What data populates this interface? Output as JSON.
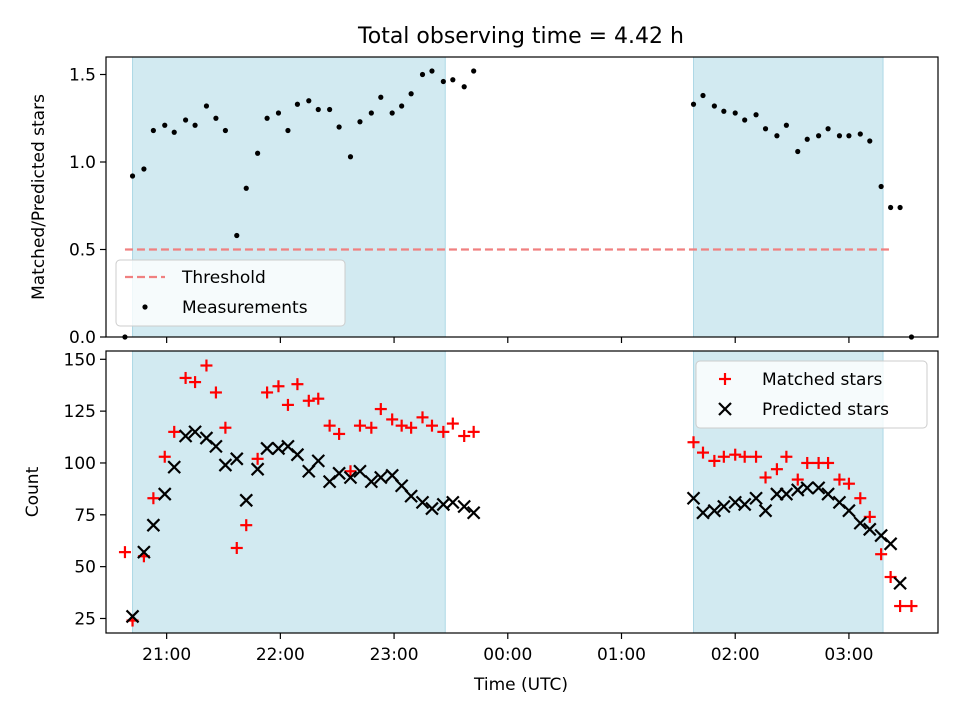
{
  "title": "Total observing time = 4.42 h",
  "colors": {
    "shade": "#add8e6",
    "threshold": "#f08080",
    "matched": "#ff0000",
    "measurements": "#000000",
    "predicted": "#000000"
  },
  "chart_data": [
    {
      "type": "scatter",
      "panel": "top",
      "ylabel": "Matched/Predicted stars",
      "xlim": [
        "20:28",
        "03:47"
      ],
      "ylim": [
        0,
        1.6
      ],
      "yticks": [
        0.0,
        0.5,
        1.0,
        1.5
      ],
      "ytick_labels": [
        "0.0",
        "0.5",
        "1.0",
        "1.5"
      ],
      "shaded_intervals": [
        [
          "20:42",
          "23:27"
        ],
        [
          "01:38",
          "03:18"
        ]
      ],
      "threshold": {
        "name": "Threshold",
        "value": 0.5,
        "x_range": [
          "20:38",
          "03:22"
        ]
      },
      "legend": {
        "position": "lower-left",
        "entries": [
          "Threshold",
          "Measurements"
        ]
      },
      "series": [
        {
          "name": "Measurements",
          "marker": "dot",
          "points": [
            [
              "20:38",
              0.0
            ],
            [
              "20:42",
              0.92
            ],
            [
              "20:48",
              0.96
            ],
            [
              "20:53",
              1.18
            ],
            [
              "20:59",
              1.21
            ],
            [
              "21:04",
              1.17
            ],
            [
              "21:10",
              1.24
            ],
            [
              "21:15",
              1.21
            ],
            [
              "21:21",
              1.32
            ],
            [
              "21:26",
              1.25
            ],
            [
              "21:31",
              1.18
            ],
            [
              "21:37",
              0.58
            ],
            [
              "21:42",
              0.85
            ],
            [
              "21:48",
              1.05
            ],
            [
              "21:53",
              1.25
            ],
            [
              "21:59",
              1.28
            ],
            [
              "22:04",
              1.18
            ],
            [
              "22:09",
              1.33
            ],
            [
              "22:15",
              1.35
            ],
            [
              "22:20",
              1.3
            ],
            [
              "22:26",
              1.3
            ],
            [
              "22:31",
              1.2
            ],
            [
              "22:37",
              1.03
            ],
            [
              "22:42",
              1.23
            ],
            [
              "22:48",
              1.28
            ],
            [
              "22:53",
              1.37
            ],
            [
              "22:59",
              1.28
            ],
            [
              "23:04",
              1.32
            ],
            [
              "23:09",
              1.39
            ],
            [
              "23:15",
              1.5
            ],
            [
              "23:20",
              1.52
            ],
            [
              "23:26",
              1.46
            ],
            [
              "23:31",
              1.47
            ],
            [
              "23:37",
              1.43
            ],
            [
              "23:42",
              1.52
            ],
            [
              "01:38",
              1.33
            ],
            [
              "01:43",
              1.38
            ],
            [
              "01:49",
              1.32
            ],
            [
              "01:54",
              1.29
            ],
            [
              "02:00",
              1.28
            ],
            [
              "02:05",
              1.24
            ],
            [
              "02:11",
              1.27
            ],
            [
              "02:16",
              1.19
            ],
            [
              "02:22",
              1.15
            ],
            [
              "02:27",
              1.21
            ],
            [
              "02:33",
              1.06
            ],
            [
              "02:38",
              1.13
            ],
            [
              "02:44",
              1.15
            ],
            [
              "02:49",
              1.19
            ],
            [
              "02:55",
              1.15
            ],
            [
              "03:00",
              1.15
            ],
            [
              "03:06",
              1.16
            ],
            [
              "03:11",
              1.12
            ],
            [
              "03:17",
              0.86
            ],
            [
              "03:22",
              0.74
            ],
            [
              "03:27",
              0.74
            ],
            [
              "03:33",
              0.0
            ]
          ]
        }
      ]
    },
    {
      "type": "scatter",
      "panel": "bottom",
      "xlabel": "Time (UTC)",
      "ylabel": "Count",
      "xlim": [
        "20:28",
        "03:47"
      ],
      "ylim": [
        18,
        154
      ],
      "yticks": [
        25,
        50,
        75,
        100,
        125,
        150
      ],
      "xtick_labels": [
        "21:00",
        "22:00",
        "23:00",
        "00:00",
        "01:00",
        "02:00",
        "03:00"
      ],
      "shaded_intervals": [
        [
          "20:42",
          "23:27"
        ],
        [
          "01:38",
          "03:18"
        ]
      ],
      "legend": {
        "position": "top-right",
        "entries": [
          "Matched stars",
          "Predicted stars"
        ]
      },
      "series": [
        {
          "name": "Matched stars",
          "marker": "plus",
          "points": [
            [
              "20:38",
              57
            ],
            [
              "20:42",
              24
            ],
            [
              "20:48",
              55
            ],
            [
              "20:53",
              83
            ],
            [
              "20:59",
              103
            ],
            [
              "21:04",
              115
            ],
            [
              "21:10",
              141
            ],
            [
              "21:15",
              139
            ],
            [
              "21:21",
              147
            ],
            [
              "21:26",
              134
            ],
            [
              "21:31",
              117
            ],
            [
              "21:37",
              59
            ],
            [
              "21:42",
              70
            ],
            [
              "21:48",
              102
            ],
            [
              "21:53",
              134
            ],
            [
              "21:59",
              137
            ],
            [
              "22:04",
              128
            ],
            [
              "22:09",
              138
            ],
            [
              "22:15",
              130
            ],
            [
              "22:20",
              131
            ],
            [
              "22:26",
              118
            ],
            [
              "22:31",
              114
            ],
            [
              "22:37",
              96
            ],
            [
              "22:42",
              118
            ],
            [
              "22:48",
              117
            ],
            [
              "22:53",
              126
            ],
            [
              "22:59",
              121
            ],
            [
              "23:04",
              118
            ],
            [
              "23:09",
              117
            ],
            [
              "23:15",
              122
            ],
            [
              "23:20",
              118
            ],
            [
              "23:26",
              115
            ],
            [
              "23:31",
              119
            ],
            [
              "23:37",
              113
            ],
            [
              "23:42",
              115
            ],
            [
              "01:38",
              110
            ],
            [
              "01:43",
              105
            ],
            [
              "01:49",
              101
            ],
            [
              "01:54",
              103
            ],
            [
              "02:00",
              104
            ],
            [
              "02:05",
              103
            ],
            [
              "02:11",
              103
            ],
            [
              "02:16",
              93
            ],
            [
              "02:22",
              97
            ],
            [
              "02:27",
              103
            ],
            [
              "02:33",
              92
            ],
            [
              "02:38",
              100
            ],
            [
              "02:44",
              100
            ],
            [
              "02:49",
              100
            ],
            [
              "02:55",
              92
            ],
            [
              "03:00",
              90
            ],
            [
              "03:06",
              83
            ],
            [
              "03:11",
              74
            ],
            [
              "03:17",
              56
            ],
            [
              "03:22",
              45
            ],
            [
              "03:27",
              31
            ],
            [
              "03:33",
              31
            ]
          ]
        },
        {
          "name": "Predicted stars",
          "marker": "x",
          "points": [
            [
              "20:42",
              26
            ],
            [
              "20:48",
              57
            ],
            [
              "20:53",
              70
            ],
            [
              "20:59",
              85
            ],
            [
              "21:04",
              98
            ],
            [
              "21:10",
              113
            ],
            [
              "21:15",
              115
            ],
            [
              "21:21",
              112
            ],
            [
              "21:26",
              108
            ],
            [
              "21:31",
              99
            ],
            [
              "21:37",
              102
            ],
            [
              "21:42",
              82
            ],
            [
              "21:48",
              97
            ],
            [
              "21:53",
              107
            ],
            [
              "21:59",
              107
            ],
            [
              "22:04",
              108
            ],
            [
              "22:09",
              104
            ],
            [
              "22:15",
              96
            ],
            [
              "22:20",
              101
            ],
            [
              "22:26",
              91
            ],
            [
              "22:31",
              95
            ],
            [
              "22:37",
              93
            ],
            [
              "22:42",
              96
            ],
            [
              "22:48",
              91
            ],
            [
              "22:53",
              93
            ],
            [
              "22:59",
              94
            ],
            [
              "23:04",
              89
            ],
            [
              "23:09",
              84
            ],
            [
              "23:15",
              81
            ],
            [
              "23:20",
              78
            ],
            [
              "23:26",
              80
            ],
            [
              "23:31",
              81
            ],
            [
              "23:37",
              79
            ],
            [
              "23:42",
              76
            ],
            [
              "01:38",
              83
            ],
            [
              "01:43",
              76
            ],
            [
              "01:49",
              77
            ],
            [
              "01:54",
              79
            ],
            [
              "02:00",
              81
            ],
            [
              "02:05",
              80
            ],
            [
              "02:11",
              83
            ],
            [
              "02:16",
              77
            ],
            [
              "02:22",
              85
            ],
            [
              "02:27",
              85
            ],
            [
              "02:33",
              87
            ],
            [
              "02:38",
              88
            ],
            [
              "02:44",
              88
            ],
            [
              "02:49",
              85
            ],
            [
              "02:55",
              81
            ],
            [
              "03:00",
              77
            ],
            [
              "03:06",
              71
            ],
            [
              "03:11",
              68
            ],
            [
              "03:17",
              65
            ],
            [
              "03:22",
              61
            ],
            [
              "03:27",
              42
            ]
          ]
        }
      ]
    }
  ]
}
